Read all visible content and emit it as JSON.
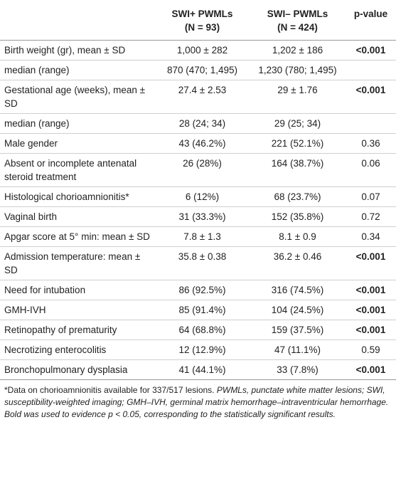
{
  "table": {
    "header": [
      [
        "SWI+ PWMLs",
        "(N = 93)"
      ],
      [
        "SWI– PWMLs",
        "(N = 424)"
      ],
      [
        "p-value"
      ]
    ],
    "rows": [
      [
        "Birth weight (gr), mean ± SD",
        "1,000 ± 282",
        "1,202 ± 186",
        "<0.001"
      ],
      [
        "median (range)",
        "870 (470; 1,495)",
        "1,230 (780; 1,495)"
      ],
      [
        "Gestational age (weeks), mean ± SD",
        "27.4 ± 2.53",
        "29 ± 1.76",
        "<0.001"
      ],
      [
        "median (range)",
        "28 (24; 34)",
        "29 (25; 34)"
      ],
      [
        "Male gender",
        "43 (46.2%)",
        "221 (52.1%)",
        "0.36"
      ],
      [
        "Absent or incomplete antenatal steroid treatment",
        "26 (28%)",
        "164 (38.7%)",
        "0.06"
      ],
      [
        "Histological chorioamnionitis*",
        "6 (12%)",
        "68 (23.7%)",
        "0.07"
      ],
      [
        "Vaginal birth",
        "31 (33.3%)",
        "152 (35.8%)",
        "0.72"
      ],
      [
        "Apgar score at 5° min: mean ± SD",
        "7.8 ± 1.3",
        "8.1 ± 0.9",
        "0.34"
      ],
      [
        "Admission temperature: mean ± SD",
        "35.8 ± 0.38",
        "36.2 ± 0.46",
        "<0.001"
      ],
      [
        "Need for intubation",
        "86 (92.5%)",
        "316 (74.5%)",
        "<0.001"
      ],
      [
        "GMH-IVH",
        "85 (91.4%)",
        "104 (24.5%)",
        "<0.001"
      ],
      [
        "Retinopathy of prematurity",
        "64 (68.8%)",
        "159 (37.5%)",
        "<0.001"
      ],
      [
        "Necrotizing enterocolitis",
        "12 (12.9%)",
        "47 (11.1%)",
        "0.59"
      ],
      [
        "Bronchopulmonary dysplasia",
        "41 (44.1%)",
        "33 (7.8%)",
        "<0.001"
      ]
    ],
    "notes": [
      "*Data on chorioamnionitis available for 337/517 lesions.",
      "PWMLs, punctate white matter lesions; SWI, susceptibility-weighted imaging; GMH–IVH, germinal matrix hemorrhage–intraventricular hemorrhage.",
      "Bold was used to evidence p < 0.05, corresponding to the statistically significant results."
    ]
  }
}
